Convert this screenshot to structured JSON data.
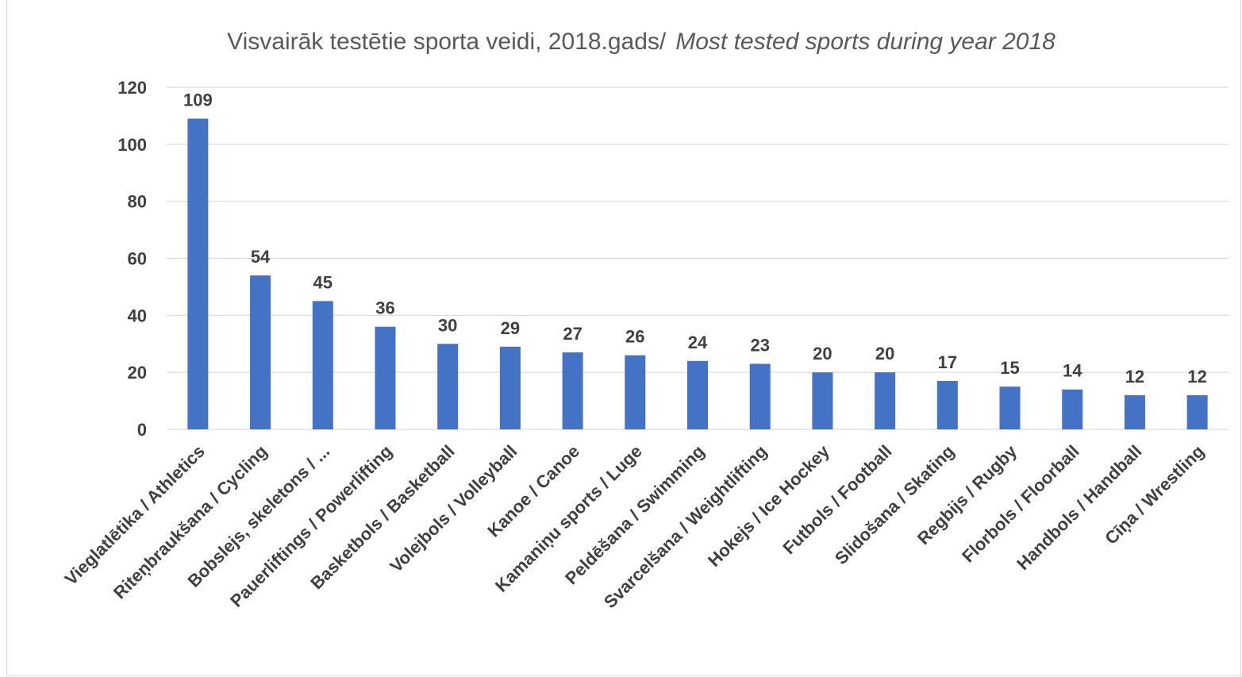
{
  "chart_data": {
    "type": "bar",
    "title": "Visvairāk testētie sporta veidi, 2018.gads/",
    "title_italic": "Most tested sports during year 2018",
    "xlabel": "",
    "ylabel": "",
    "ylim": [
      0,
      120
    ],
    "yticks": [
      0,
      20,
      40,
      60,
      80,
      100,
      120
    ],
    "grid": true,
    "legend": "none",
    "bar_color": "#4472c4",
    "categories": [
      "Vieglatlētika / Athletics",
      "Riteņbraukšana / Cycling",
      "Bobslejs, skeletons / ...",
      "Pauerliftings / Powerlifting",
      "Basketbols / Basketball",
      "Volejbols / Volleyball",
      "Kanoe / Canoe",
      "Kamaniņu sports / Luge",
      "Peldēšana / Swimming",
      "Svarcelšana / Weightlifting",
      "Hokejs / Ice Hockey",
      "Futbols / Football",
      "Slidošana / Skating",
      "Regbijs / Rugby",
      "Florbols / Floorball",
      "Handbols / Handball",
      "Cīņa / Wrestling"
    ],
    "values": [
      109,
      54,
      45,
      36,
      30,
      29,
      27,
      26,
      24,
      23,
      20,
      20,
      17,
      15,
      14,
      12,
      12
    ]
  }
}
